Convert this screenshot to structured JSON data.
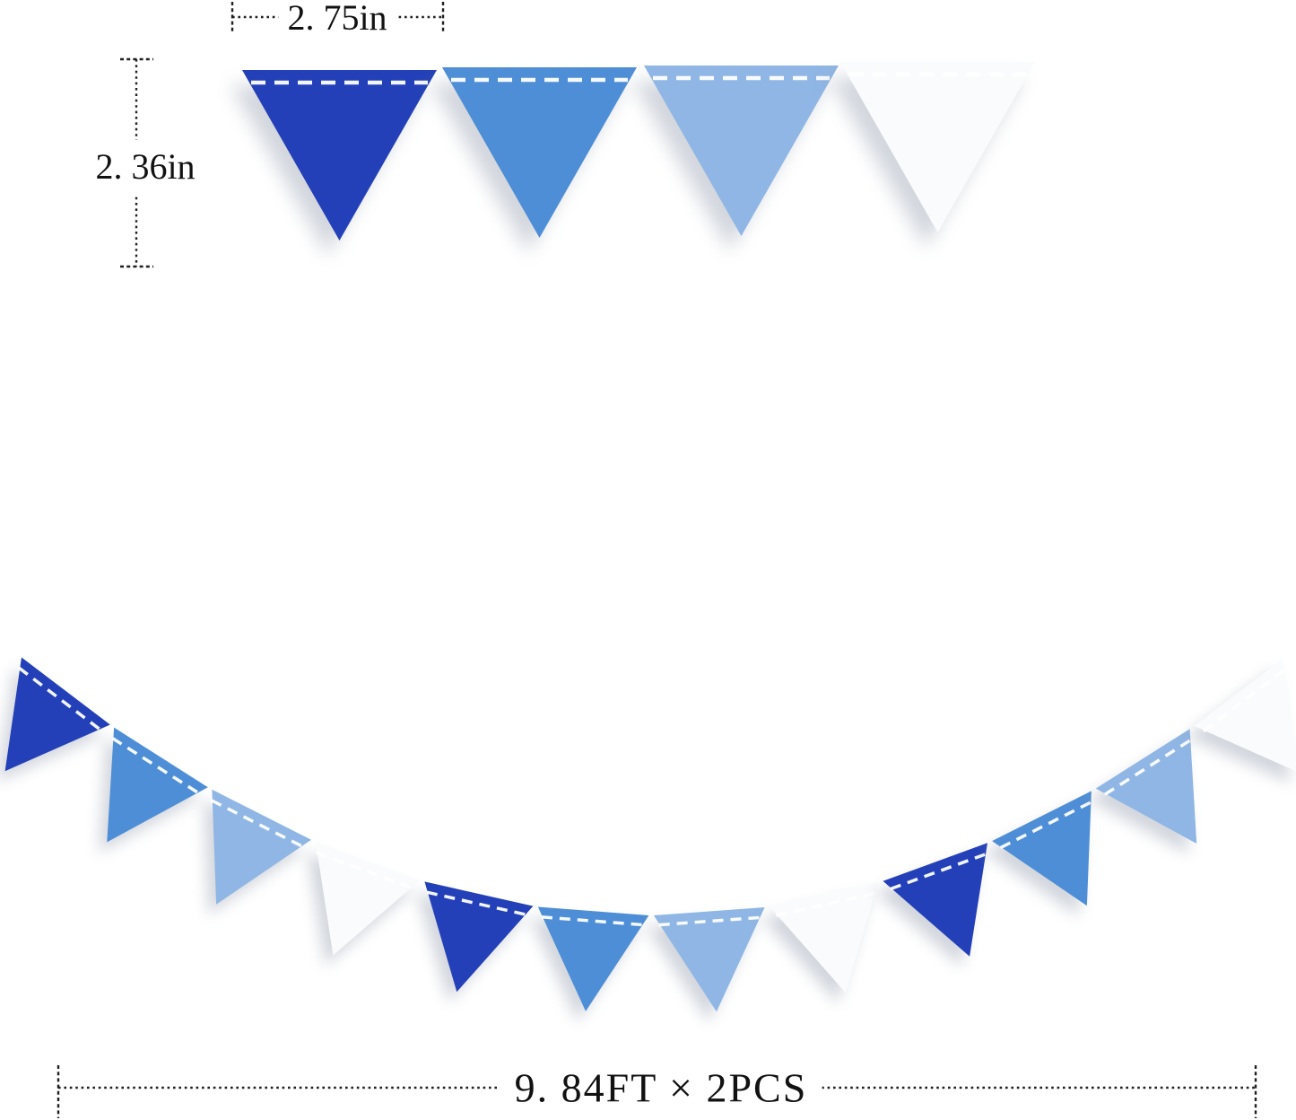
{
  "page": {
    "background": "#ffffff"
  },
  "annotations": {
    "flag_width_label": "2. 75in",
    "flag_height_label": "2. 36in",
    "garland_length_label": "9. 84FT × 2PCS"
  },
  "banner": {
    "colors": {
      "dark": "#2340b8",
      "medium": "#4e8ed6",
      "light": "#8fb6e4",
      "white": "#fafbfc"
    },
    "stitch_color": "#ffffff",
    "top_row_flags": [
      "dark",
      "medium",
      "light",
      "white"
    ],
    "garland_flags": [
      "dark",
      "medium",
      "light",
      "white",
      "dark",
      "medium",
      "light",
      "white",
      "dark",
      "medium",
      "light",
      "white"
    ]
  }
}
